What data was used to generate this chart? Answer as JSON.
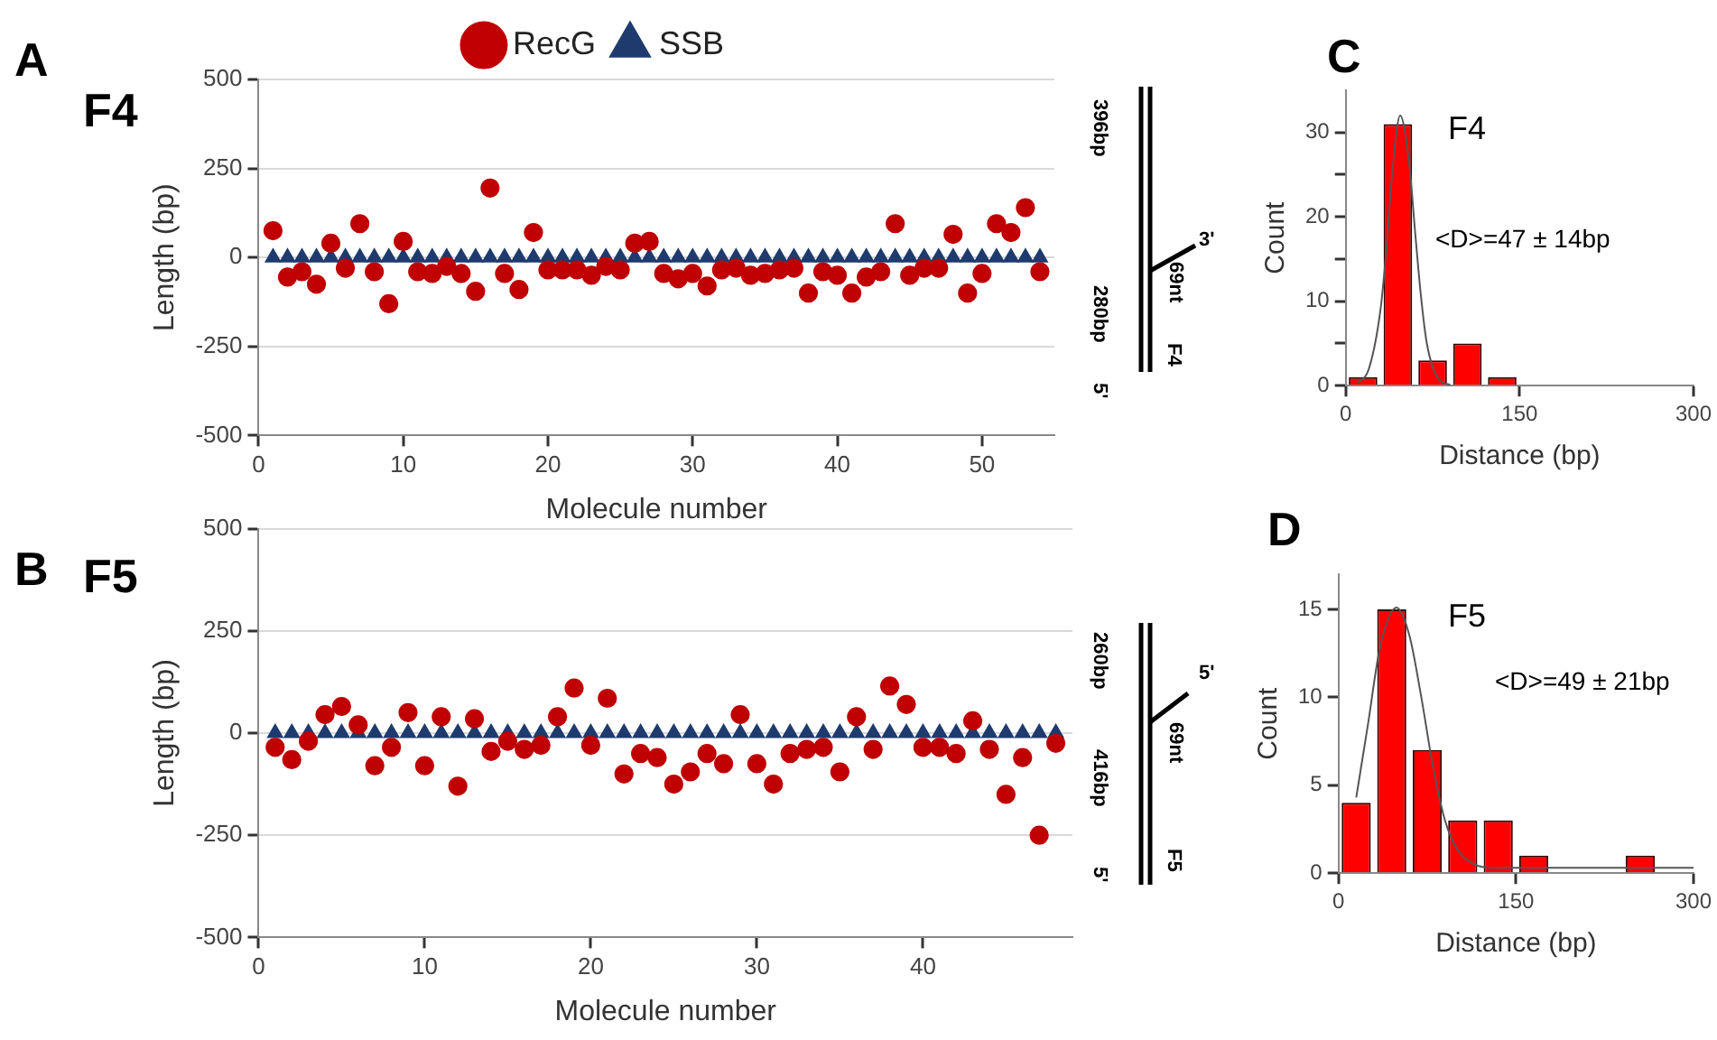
{
  "chart_data": [
    {
      "type": "scatter",
      "title": "F4",
      "annotations": [
        "A"
      ],
      "xlabel": "Molecule number",
      "ylabel": "Length (bp)",
      "x": [
        1,
        2,
        3,
        4,
        5,
        6,
        7,
        8,
        9,
        10,
        11,
        12,
        13,
        14,
        15,
        16,
        17,
        18,
        19,
        20,
        21,
        22,
        23,
        24,
        25,
        26,
        27,
        28,
        29,
        30,
        31,
        32,
        33,
        34,
        35,
        36,
        37,
        38,
        39,
        40,
        41,
        42,
        43,
        44,
        45,
        46,
        47,
        48,
        49,
        50,
        51,
        52,
        53,
        54
      ],
      "series": [
        {
          "name": "RecG",
          "color": "#c00000",
          "marker": "circle",
          "values": [
            75,
            -55,
            -40,
            -75,
            40,
            -30,
            95,
            -40,
            -130,
            45,
            -40,
            -45,
            -25,
            -45,
            -95,
            195,
            -45,
            -90,
            70,
            -35,
            -35,
            -35,
            -50,
            -25,
            -35,
            40,
            45,
            -45,
            -60,
            -45,
            -80,
            -35,
            -30,
            -50,
            -45,
            -35,
            -30,
            -100,
            -40,
            -50,
            -100,
            -55,
            -40,
            95,
            -50,
            -30,
            -30,
            65,
            -100,
            -45,
            95,
            70,
            140,
            -40
          ]
        },
        {
          "name": "SSB",
          "color": "#1f3b6e",
          "marker": "triangle",
          "values": [
            0,
            0,
            0,
            0,
            0,
            0,
            0,
            0,
            0,
            0,
            0,
            0,
            0,
            0,
            0,
            0,
            0,
            0,
            0,
            0,
            0,
            0,
            0,
            0,
            0,
            0,
            0,
            0,
            0,
            0,
            0,
            0,
            0,
            0,
            0,
            0,
            0,
            0,
            0,
            0,
            0,
            0,
            0,
            0,
            0,
            0,
            0,
            0,
            0,
            0,
            0,
            0,
            0,
            0
          ]
        }
      ],
      "xlim": [
        0,
        55
      ],
      "xticks": [
        0,
        10,
        20,
        30,
        40,
        50
      ],
      "ylim": [
        -500,
        500
      ],
      "yticks": [
        -500,
        -250,
        0,
        250,
        500
      ],
      "grid": "y",
      "legend": "top"
    },
    {
      "type": "other",
      "annotations": [
        "396bp",
        "280bp",
        "69nt",
        "3'",
        "5'",
        "F4"
      ]
    },
    {
      "type": "histogram",
      "annotations": [
        "C",
        "F4",
        "<D>=47 ± 14bp"
      ],
      "xlabel": "Distance (bp)",
      "ylabel": "Count",
      "bins": [
        0,
        30,
        60,
        90,
        120,
        150
      ],
      "series": [
        {
          "type": "histogram",
          "color": "#ff0000",
          "values": [
            1,
            31,
            3,
            5,
            1
          ]
        },
        {
          "type": "line",
          "color": "#555555",
          "x": [
            10,
            20,
            30,
            35,
            40,
            47,
            55,
            60,
            65,
            70,
            80,
            90
          ],
          "values": [
            0.3,
            2,
            9,
            16,
            25,
            32,
            26,
            18,
            10.5,
            5,
            0.8,
            0.1
          ]
        }
      ],
      "xlim": [
        0,
        300
      ],
      "xticks": [
        0,
        150,
        300
      ],
      "ylim": [
        0,
        35
      ],
      "yticks": [
        0,
        {
          "value": 5,
          "label": null
        },
        10,
        {
          "value": 15,
          "label": null
        },
        20,
        {
          "value": 25,
          "label": null
        },
        30
      ]
    },
    {
      "type": "scatter",
      "title": "F5",
      "annotations": [
        "B"
      ],
      "xlabel": "Molecule number",
      "ylabel": "Length (bp)",
      "x": [
        1,
        2,
        3,
        4,
        5,
        6,
        7,
        8,
        9,
        10,
        11,
        12,
        13,
        14,
        15,
        16,
        17,
        18,
        19,
        20,
        21,
        22,
        23,
        24,
        25,
        26,
        27,
        28,
        29,
        30,
        31,
        32,
        33,
        34,
        35,
        36,
        37,
        38,
        39,
        40,
        41,
        42,
        43,
        44,
        45,
        46,
        47,
        48
      ],
      "series": [
        {
          "color": "#c00000",
          "marker": "circle",
          "values": [
            -35,
            -65,
            -20,
            45,
            65,
            20,
            -80,
            -35,
            50,
            -80,
            40,
            -130,
            35,
            -45,
            -20,
            -40,
            -30,
            40,
            110,
            -30,
            85,
            -100,
            -50,
            -60,
            -125,
            -95,
            -50,
            -75,
            45,
            -75,
            -125,
            -50,
            -40,
            -35,
            -95,
            40,
            -40,
            115,
            70,
            -35,
            -35,
            -50,
            30,
            -40,
            -150,
            -60,
            -250,
            -25
          ]
        },
        {
          "color": "#1f3b6e",
          "marker": "triangle",
          "values": [
            0,
            0,
            0,
            0,
            0,
            0,
            0,
            0,
            0,
            0,
            0,
            0,
            0,
            0,
            0,
            0,
            0,
            0,
            0,
            0,
            0,
            0,
            0,
            0,
            0,
            0,
            0,
            0,
            0,
            0,
            0,
            0,
            0,
            0,
            0,
            0,
            0,
            0,
            0,
            0,
            0,
            0,
            0,
            0,
            0,
            0,
            0,
            0
          ]
        }
      ],
      "xlim": [
        0,
        49
      ],
      "xticks": [
        0,
        10,
        20,
        30,
        40
      ],
      "ylim": [
        -500,
        500
      ],
      "yticks": [
        -500,
        -250,
        0,
        250,
        500
      ],
      "grid": "y"
    },
    {
      "type": "other",
      "annotations": [
        "260bp",
        "416bp",
        "69nt",
        "5'",
        "5'",
        "F5"
      ]
    },
    {
      "type": "histogram",
      "annotations": [
        "D",
        "F5",
        "<D>=49 ± 21bp"
      ],
      "xlabel": "Distance (bp)",
      "ylabel": "Count",
      "bins": [
        0,
        30,
        60,
        90,
        120,
        150,
        180,
        210,
        240,
        270
      ],
      "series": [
        {
          "type": "histogram",
          "color": "#ff0000",
          "values": [
            4,
            15,
            7,
            3,
            3,
            1,
            0,
            0,
            1
          ]
        },
        {
          "type": "line",
          "color": "#555555",
          "x": [
            15,
            25,
            35,
            49,
            60,
            70,
            80,
            90,
            100,
            115,
            130,
            200,
            300
          ],
          "values": [
            4.3,
            8.5,
            12.8,
            15.1,
            13.5,
            10,
            6,
            3,
            1.4,
            0.5,
            0.3,
            0.3,
            0.3
          ]
        }
      ],
      "xlim": [
        0,
        300
      ],
      "xticks": [
        0,
        150,
        300
      ],
      "ylim": [
        0,
        17
      ],
      "yticks": [
        0,
        5,
        10,
        15
      ]
    }
  ]
}
